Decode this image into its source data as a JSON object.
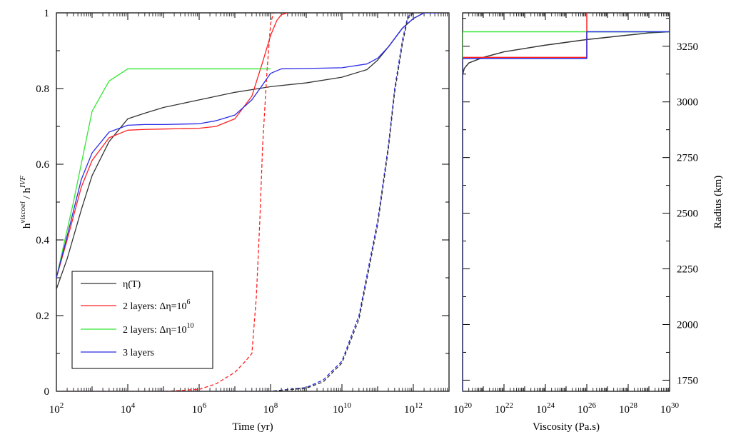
{
  "chart_data": [
    {
      "type": "line",
      "xlabel": "Time (yr)",
      "ylabel_main": "h",
      "ylabel_sup_num": "viscoel",
      "ylabel_slash": " / h",
      "ylabel_sup_den": "IVF",
      "xscale": "log",
      "xlim": [
        100,
        10000000000000.0
      ],
      "ylim": [
        0,
        1
      ],
      "x_ticks": [
        {
          "base": "10",
          "exp": "2",
          "value": 100
        },
        {
          "base": "10",
          "exp": "4",
          "value": 10000
        },
        {
          "base": "10",
          "exp": "6",
          "value": 1000000
        },
        {
          "base": "10",
          "exp": "8",
          "value": 100000000
        },
        {
          "base": "10",
          "exp": "10",
          "value": 10000000000
        },
        {
          "base": "10",
          "exp": "12",
          "value": 1000000000000
        }
      ],
      "y_ticks": [
        "0",
        "0.2",
        "0.4",
        "0.6",
        "0.8",
        "1"
      ],
      "legend": {
        "position": "bottom-left",
        "entries": [
          {
            "text": "η(T)",
            "sup": "",
            "color": "#333333"
          },
          {
            "text": "2 layers:  Δη=10",
            "sup": "6",
            "color": "#ff2020"
          },
          {
            "text": "2 layers:  Δη=10",
            "sup": "10",
            "color": "#33e633"
          },
          {
            "text": "3 layers",
            "sup": "",
            "color": "#2a2ae6"
          }
        ]
      },
      "series": [
        {
          "color": "#333333",
          "dash": false,
          "x": [
            100,
            200,
            500,
            1000,
            3000,
            10000,
            30000,
            100000,
            1000000,
            10000000,
            100000000,
            1000000000,
            10000000000,
            50000000000,
            100000000000,
            200000000000,
            500000000000,
            1000000000000,
            2000000000000,
            5000000000000
          ],
          "y": [
            0.27,
            0.35,
            0.48,
            0.57,
            0.66,
            0.72,
            0.735,
            0.75,
            0.77,
            0.79,
            0.805,
            0.815,
            0.83,
            0.85,
            0.875,
            0.91,
            0.96,
            0.985,
            1.0,
            1.0
          ]
        },
        {
          "color": "#ff2020",
          "dash": false,
          "x": [
            100,
            200,
            500,
            1000,
            3000,
            10000,
            30000,
            100000,
            1000000,
            3000000,
            10000000,
            30000000,
            60000000,
            100000000,
            150000000,
            200000000,
            300000000
          ],
          "y": [
            0.3,
            0.4,
            0.54,
            0.61,
            0.67,
            0.69,
            0.692,
            0.693,
            0.695,
            0.7,
            0.72,
            0.78,
            0.87,
            0.94,
            0.98,
            0.995,
            1.0
          ]
        },
        {
          "color": "#ff2020",
          "dash": true,
          "x": [
            100,
            1000,
            10000,
            100000,
            1000000,
            3000000,
            10000000,
            20000000,
            30000000,
            40000000,
            50000000,
            60000000,
            80000000,
            100000000,
            120000000
          ],
          "y": [
            0,
            0,
            0,
            0,
            0.005,
            0.02,
            0.05,
            0.08,
            0.1,
            0.25,
            0.45,
            0.65,
            0.85,
            0.97,
            1.0
          ]
        },
        {
          "color": "#33e633",
          "dash": false,
          "x": [
            100,
            300,
            1000,
            3000,
            10000,
            100000,
            1000000,
            10000000,
            100000000
          ],
          "y": [
            0.3,
            0.5,
            0.74,
            0.82,
            0.852,
            0.852,
            0.852,
            0.852,
            0.852
          ]
        },
        {
          "color": "#2a2ae6",
          "dash": false,
          "x": [
            100,
            200,
            500,
            1000,
            3000,
            10000,
            30000,
            100000,
            1000000,
            3000000,
            10000000,
            30000000,
            60000000,
            100000000,
            200000000,
            1000000000,
            10000000000,
            50000000000,
            100000000000,
            200000000000,
            500000000000,
            1000000000000,
            2000000000000,
            5000000000000
          ],
          "y": [
            0.3,
            0.41,
            0.56,
            0.63,
            0.685,
            0.703,
            0.705,
            0.705,
            0.707,
            0.715,
            0.73,
            0.77,
            0.81,
            0.84,
            0.852,
            0.853,
            0.855,
            0.865,
            0.88,
            0.91,
            0.96,
            0.985,
            1.0,
            1.0
          ]
        },
        {
          "color": "#2a2ae6",
          "dash": true,
          "x": [
            100,
            10000,
            1000000,
            100000000,
            1000000000,
            3000000000,
            10000000000,
            30000000000,
            100000000000,
            200000000000,
            300000000000,
            500000000000,
            700000000000,
            1000000000000
          ],
          "y": [
            0,
            0,
            0,
            0,
            0.01,
            0.03,
            0.08,
            0.2,
            0.45,
            0.65,
            0.8,
            0.93,
            0.99,
            1.0
          ]
        },
        {
          "color": "#333333",
          "dash": true,
          "x": [
            100,
            10000,
            1000000,
            100000000,
            1000000000,
            3000000000,
            10000000000,
            30000000000,
            100000000000,
            200000000000,
            300000000000,
            500000000000,
            700000000000,
            1000000000000
          ],
          "y": [
            0,
            0,
            0,
            0,
            0.008,
            0.025,
            0.075,
            0.19,
            0.44,
            0.64,
            0.79,
            0.92,
            0.985,
            1.0
          ]
        }
      ]
    },
    {
      "type": "line",
      "xlabel": "Viscosity (Pa.s)",
      "ylabel": "Radius (km)",
      "xscale": "log",
      "xlim": [
        1e+20,
        1e+30
      ],
      "ylim": [
        1700,
        3400
      ],
      "x_ticks": [
        {
          "base": "10",
          "exp": "20",
          "value": 1e+20
        },
        {
          "base": "10",
          "exp": "22",
          "value": 1e+22
        },
        {
          "base": "10",
          "exp": "24",
          "value": 1e+24
        },
        {
          "base": "10",
          "exp": "26",
          "value": 1e+26
        },
        {
          "base": "10",
          "exp": "28",
          "value": 1e+28
        },
        {
          "base": "10",
          "exp": "30",
          "value": 1e+30
        }
      ],
      "y_ticks": [
        "1750",
        "2000",
        "2250",
        "2500",
        "2750",
        "3000",
        "3250"
      ],
      "y_tick_values": [
        1750,
        2000,
        2250,
        2500,
        2750,
        3000,
        3250
      ],
      "series": [
        {
          "color": "#333333",
          "dash": false,
          "x": [
            1e+20,
            1e+20,
            1.2e+20,
            2e+20,
            1e+21,
            1e+22,
            1e+24,
            1e+26,
            1e+28,
            1e+29,
            1e+30,
            1e+30
          ],
          "y": [
            1700,
            3120,
            3150,
            3175,
            3200,
            3225,
            3255,
            3280,
            3300,
            3310,
            3315,
            3400
          ]
        },
        {
          "color": "#ff2020",
          "dash": false,
          "x": [
            1e+20,
            1e+20,
            1e+26,
            1e+26
          ],
          "y": [
            1700,
            3200,
            3200,
            3400
          ]
        },
        {
          "color": "#33e633",
          "dash": false,
          "x": [
            1e+20,
            1e+20,
            1e+30,
            1e+30
          ],
          "y": [
            1700,
            3315,
            3315,
            3400
          ]
        },
        {
          "color": "#2a2ae6",
          "dash": false,
          "x": [
            1e+20,
            1e+20,
            1e+26,
            1e+26,
            1e+30,
            1e+30
          ],
          "y": [
            1700,
            3195,
            3195,
            3315,
            3315,
            3400
          ]
        }
      ]
    }
  ]
}
